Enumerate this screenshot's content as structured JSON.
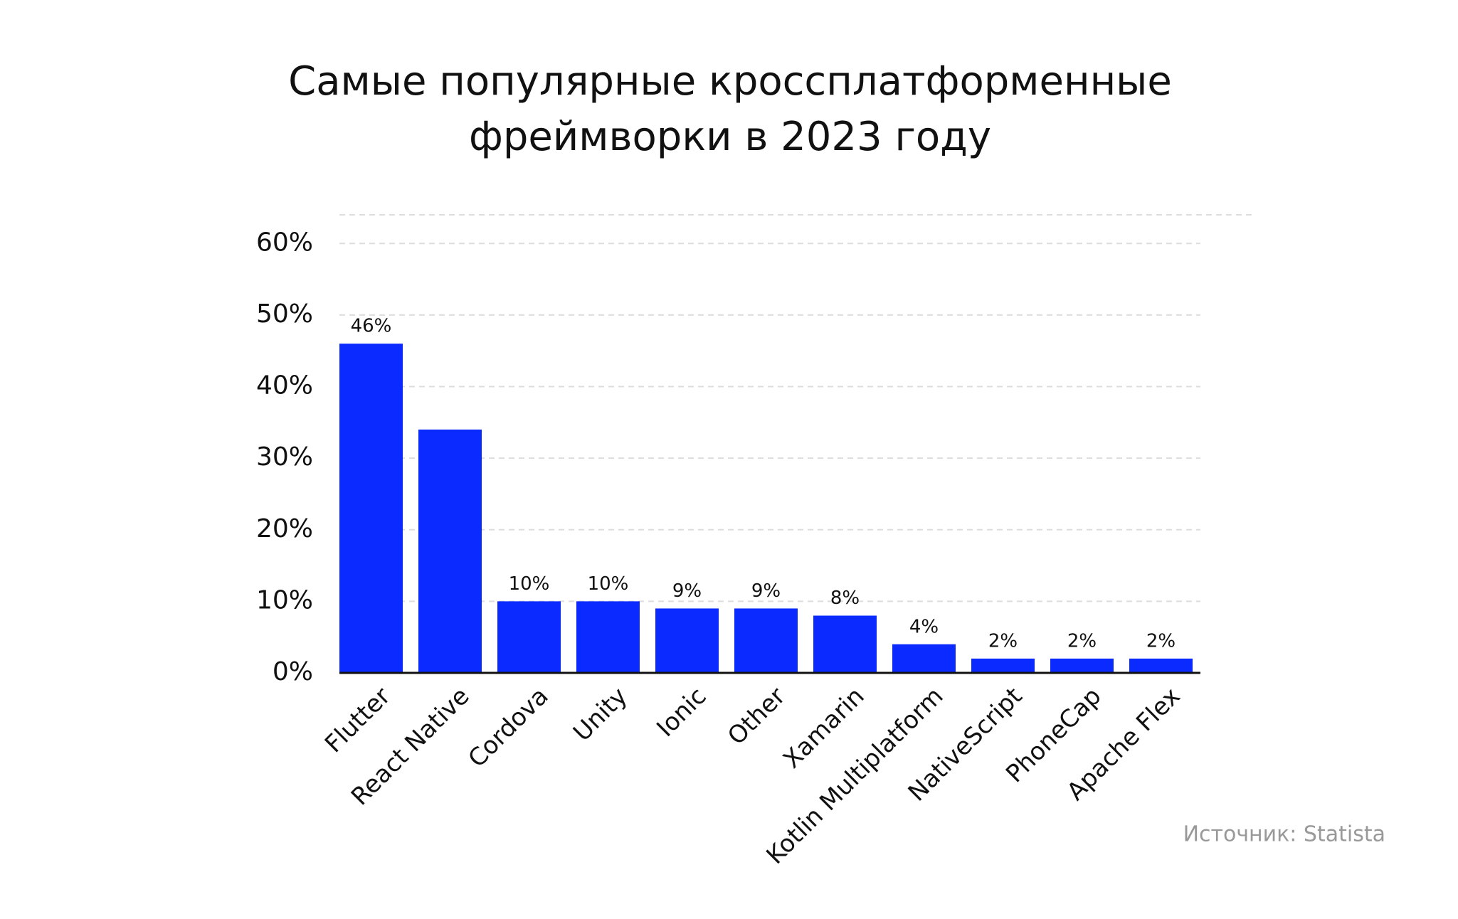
{
  "chart_data": {
    "type": "bar",
    "title": [
      "Самые популярные кроссплатформенные",
      "фреймворки в 2023 году"
    ],
    "categories": [
      "Flutter",
      "React Native",
      "Cordova",
      "Unity",
      "Ionic",
      "Other",
      "Xamarin",
      "Kotlin Multiplatform",
      "NativeScript",
      "PhoneCap",
      "Apache Flex"
    ],
    "values": [
      46,
      34,
      10,
      10,
      9,
      9,
      8,
      4,
      2,
      2,
      2
    ],
    "value_labels": [
      "46%",
      null,
      "10%",
      "10%",
      "9%",
      "9%",
      "8%",
      "4%",
      "2%",
      "2%",
      "2%"
    ],
    "color": "#0a2aff",
    "ylim": [
      0,
      64
    ],
    "yticks": [
      {
        "value": 0,
        "label": "0%"
      },
      {
        "value": 10,
        "label": "10%"
      },
      {
        "value": 20,
        "label": "20%"
      },
      {
        "value": 30,
        "label": "30%"
      },
      {
        "value": 40,
        "label": "40%"
      },
      {
        "value": 50,
        "label": "50%"
      },
      {
        "value": 60,
        "label": "60%"
      }
    ],
    "grid": true,
    "source": "Источник: Statista"
  }
}
